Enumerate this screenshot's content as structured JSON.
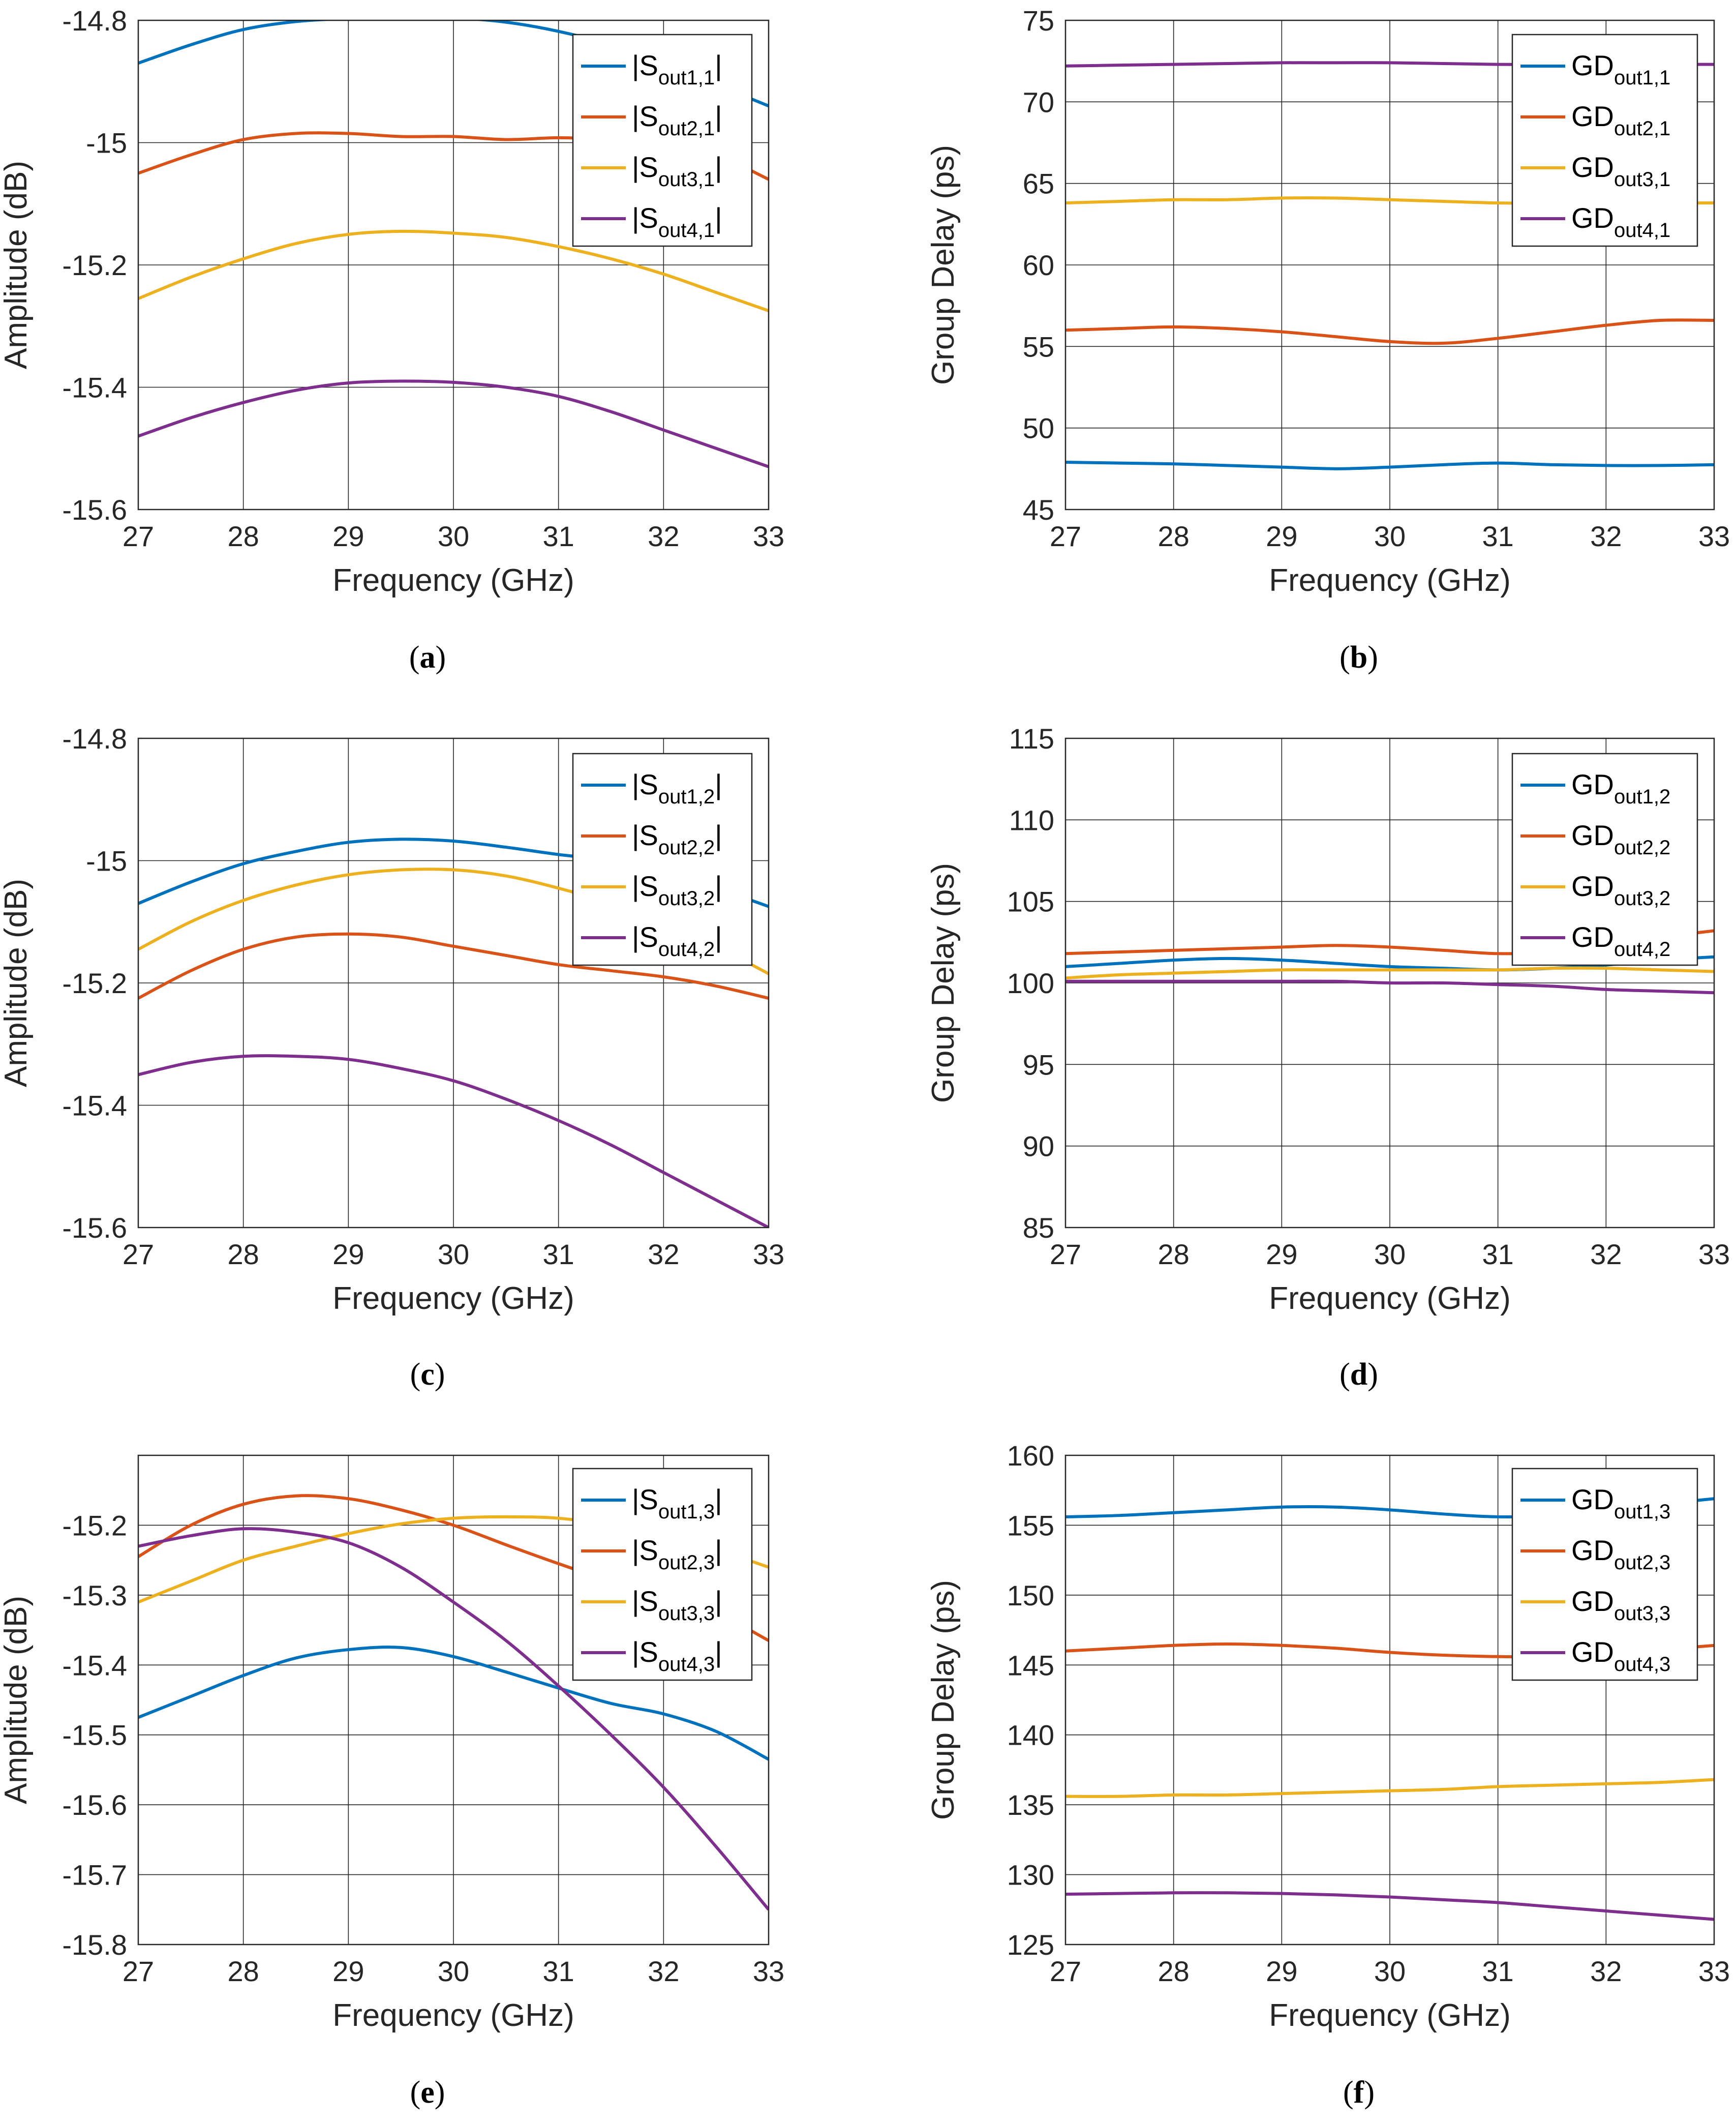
{
  "captions": [
    "a",
    "b",
    "c",
    "d",
    "e",
    "f"
  ],
  "chart_data": [
    {
      "type": "line",
      "xlabel": "Frequency (GHz)",
      "ylabel": "Amplitude (dB)",
      "xlim": [
        27,
        33
      ],
      "ylim": [
        -15.6,
        -14.8
      ],
      "xticks": [
        "27",
        "28",
        "29",
        "30",
        "31",
        "32",
        "33"
      ],
      "yticks": [
        "-15.6",
        "-15.4",
        "-15.2",
        "-15",
        "-14.8"
      ],
      "grid": true,
      "legend": "top-right",
      "x": [
        27,
        27.5,
        28,
        28.5,
        29,
        29.5,
        30,
        30.5,
        31,
        31.5,
        32,
        32.5,
        33
      ],
      "series": [
        {
          "name": "|Sout1,1|",
          "sub": "out1,1",
          "color": "#0072BD",
          "values": [
            -14.87,
            -14.84,
            -14.815,
            -14.802,
            -14.797,
            -14.795,
            -14.796,
            -14.803,
            -14.818,
            -14.84,
            -14.87,
            -14.905,
            -14.94
          ]
        },
        {
          "name": "|Sout2,1|",
          "sub": "out2,1",
          "color": "#D95319",
          "values": [
            -15.05,
            -15.02,
            -14.995,
            -14.985,
            -14.985,
            -14.99,
            -14.99,
            -14.995,
            -14.992,
            -14.995,
            -15.0,
            -15.02,
            -15.06
          ]
        },
        {
          "name": "|Sout3,1|",
          "sub": "out3,1",
          "color": "#EDB120",
          "values": [
            -15.255,
            -15.22,
            -15.19,
            -15.165,
            -15.15,
            -15.145,
            -15.148,
            -15.155,
            -15.17,
            -15.19,
            -15.215,
            -15.245,
            -15.275
          ]
        },
        {
          "name": "|Sout4,1|",
          "sub": "out4,1",
          "color": "#7E2F8E",
          "values": [
            -15.48,
            -15.45,
            -15.425,
            -15.405,
            -15.393,
            -15.39,
            -15.392,
            -15.4,
            -15.415,
            -15.44,
            -15.47,
            -15.5,
            -15.53
          ]
        }
      ]
    },
    {
      "type": "line",
      "xlabel": "Frequency (GHz)",
      "ylabel": "Group Delay (ps)",
      "xlim": [
        27,
        33
      ],
      "ylim": [
        45,
        75
      ],
      "xticks": [
        "27",
        "28",
        "29",
        "30",
        "31",
        "32",
        "33"
      ],
      "yticks": [
        "45",
        "50",
        "55",
        "60",
        "65",
        "70",
        "75"
      ],
      "grid": true,
      "legend": "top-right",
      "x": [
        27,
        27.5,
        28,
        28.5,
        29,
        29.5,
        30,
        30.5,
        31,
        31.5,
        32,
        32.5,
        33
      ],
      "series": [
        {
          "name": "GDout1,1",
          "sub": "out1,1",
          "color": "#0072BD",
          "values": [
            47.9,
            47.85,
            47.8,
            47.7,
            47.6,
            47.5,
            47.6,
            47.75,
            47.85,
            47.75,
            47.7,
            47.7,
            47.75
          ]
        },
        {
          "name": "GDout2,1",
          "sub": "out2,1",
          "color": "#D95319",
          "values": [
            56.0,
            56.1,
            56.2,
            56.1,
            55.9,
            55.6,
            55.3,
            55.2,
            55.5,
            55.9,
            56.3,
            56.6,
            56.6
          ]
        },
        {
          "name": "GDout3,1",
          "sub": "out3,1",
          "color": "#EDB120",
          "values": [
            63.8,
            63.9,
            64.0,
            64.0,
            64.1,
            64.1,
            64.0,
            63.9,
            63.8,
            63.8,
            63.8,
            63.8,
            63.8
          ]
        },
        {
          "name": "GDout4,1",
          "sub": "out4,1",
          "color": "#7E2F8E",
          "values": [
            72.2,
            72.25,
            72.3,
            72.35,
            72.4,
            72.4,
            72.4,
            72.35,
            72.3,
            72.3,
            72.3,
            72.3,
            72.3
          ]
        }
      ]
    },
    {
      "type": "line",
      "xlabel": "Frequency (GHz)",
      "ylabel": "Amplitude (dB)",
      "xlim": [
        27,
        33
      ],
      "ylim": [
        -15.6,
        -14.8
      ],
      "xticks": [
        "27",
        "28",
        "29",
        "30",
        "31",
        "32",
        "33"
      ],
      "yticks": [
        "-15.6",
        "-15.4",
        "-15.2",
        "-15",
        "-14.8"
      ],
      "grid": true,
      "legend": "top-right",
      "x": [
        27,
        27.5,
        28,
        28.5,
        29,
        29.5,
        30,
        30.5,
        31,
        31.5,
        32,
        32.5,
        33
      ],
      "series": [
        {
          "name": "|Sout1,2|",
          "sub": "out1,2",
          "color": "#0072BD",
          "values": [
            -15.07,
            -15.035,
            -15.005,
            -14.985,
            -14.97,
            -14.965,
            -14.968,
            -14.978,
            -14.99,
            -15.0,
            -15.02,
            -15.045,
            -15.075
          ]
        },
        {
          "name": "|Sout2,2|",
          "sub": "out2,2",
          "color": "#D95319",
          "values": [
            -15.225,
            -15.18,
            -15.145,
            -15.125,
            -15.12,
            -15.125,
            -15.14,
            -15.155,
            -15.17,
            -15.18,
            -15.19,
            -15.205,
            -15.225
          ]
        },
        {
          "name": "|Sout3,2|",
          "sub": "out3,2",
          "color": "#EDB120",
          "values": [
            -15.145,
            -15.1,
            -15.065,
            -15.04,
            -15.023,
            -15.015,
            -15.015,
            -15.025,
            -15.045,
            -15.07,
            -15.1,
            -15.14,
            -15.185
          ]
        },
        {
          "name": "|Sout4,2|",
          "sub": "out4,2",
          "color": "#7E2F8E",
          "values": [
            -15.35,
            -15.33,
            -15.32,
            -15.32,
            -15.325,
            -15.34,
            -15.36,
            -15.39,
            -15.425,
            -15.465,
            -15.51,
            -15.555,
            -15.6
          ]
        }
      ]
    },
    {
      "type": "line",
      "xlabel": "Frequency (GHz)",
      "ylabel": "Group Delay (ps)",
      "xlim": [
        27,
        33
      ],
      "ylim": [
        85,
        115
      ],
      "xticks": [
        "27",
        "28",
        "29",
        "30",
        "31",
        "32",
        "33"
      ],
      "yticks": [
        "85",
        "90",
        "95",
        "100",
        "105",
        "110",
        "115"
      ],
      "grid": true,
      "legend": "top-right",
      "x": [
        27,
        27.5,
        28,
        28.5,
        29,
        29.5,
        30,
        30.5,
        31,
        31.5,
        32,
        32.5,
        33
      ],
      "series": [
        {
          "name": "GDout1,2",
          "sub": "out1,2",
          "color": "#0072BD",
          "values": [
            101.0,
            101.2,
            101.4,
            101.5,
            101.4,
            101.2,
            101.0,
            100.9,
            100.8,
            100.9,
            101.1,
            101.4,
            101.6
          ]
        },
        {
          "name": "GDout2,2",
          "sub": "out2,2",
          "color": "#D95319",
          "values": [
            101.8,
            101.9,
            102.0,
            102.1,
            102.2,
            102.3,
            102.2,
            102.0,
            101.8,
            101.9,
            102.3,
            102.8,
            103.2
          ]
        },
        {
          "name": "GDout3,2",
          "sub": "out3,2",
          "color": "#EDB120",
          "values": [
            100.3,
            100.5,
            100.6,
            100.7,
            100.8,
            100.8,
            100.8,
            100.8,
            100.8,
            100.9,
            100.9,
            100.8,
            100.7
          ]
        },
        {
          "name": "GDout4,2",
          "sub": "out4,2",
          "color": "#7E2F8E",
          "values": [
            100.1,
            100.1,
            100.1,
            100.1,
            100.1,
            100.1,
            100.0,
            100.0,
            99.9,
            99.8,
            99.6,
            99.5,
            99.4
          ]
        }
      ]
    },
    {
      "type": "line",
      "xlabel": "Frequency (GHz)",
      "ylabel": "Amplitude (dB)",
      "xlim": [
        27,
        33
      ],
      "ylim": [
        -15.8,
        -15.1
      ],
      "xticks": [
        "27",
        "28",
        "29",
        "30",
        "31",
        "32",
        "33"
      ],
      "yticks": [
        "-15.8",
        "-15.7",
        "-15.6",
        "-15.5",
        "-15.4",
        "-15.3",
        "-15.2"
      ],
      "grid": true,
      "legend": "top-right",
      "x": [
        27,
        27.5,
        28,
        28.5,
        29,
        29.5,
        30,
        30.5,
        31,
        31.5,
        32,
        32.5,
        33
      ],
      "series": [
        {
          "name": "|Sout1,3|",
          "sub": "out1,3",
          "color": "#0072BD",
          "values": [
            -15.475,
            -15.445,
            -15.415,
            -15.39,
            -15.378,
            -15.375,
            -15.388,
            -15.41,
            -15.433,
            -15.455,
            -15.47,
            -15.495,
            -15.535
          ]
        },
        {
          "name": "|Sout2,3|",
          "sub": "out2,3",
          "color": "#D95319",
          "values": [
            -15.245,
            -15.2,
            -15.17,
            -15.158,
            -15.162,
            -15.178,
            -15.2,
            -15.228,
            -15.255,
            -15.28,
            -15.3,
            -15.325,
            -15.365
          ]
        },
        {
          "name": "|Sout3,3|",
          "sub": "out3,3",
          "color": "#EDB120",
          "values": [
            -15.31,
            -15.28,
            -15.25,
            -15.23,
            -15.212,
            -15.198,
            -15.19,
            -15.188,
            -15.19,
            -15.2,
            -15.215,
            -15.235,
            -15.26
          ]
        },
        {
          "name": "|Sout4,3|",
          "sub": "out4,3",
          "color": "#7E2F8E",
          "values": [
            -15.23,
            -15.215,
            -15.205,
            -15.21,
            -15.225,
            -15.26,
            -15.31,
            -15.365,
            -15.43,
            -15.5,
            -15.575,
            -15.66,
            -15.75
          ]
        }
      ]
    },
    {
      "type": "line",
      "xlabel": "Frequency (GHz)",
      "ylabel": "Group Delay (ps)",
      "xlim": [
        27,
        33
      ],
      "ylim": [
        125,
        160
      ],
      "xticks": [
        "27",
        "28",
        "29",
        "30",
        "31",
        "32",
        "33"
      ],
      "yticks": [
        "125",
        "130",
        "135",
        "140",
        "145",
        "150",
        "155",
        "160"
      ],
      "grid": true,
      "legend": "top-right",
      "x": [
        27,
        27.5,
        28,
        28.5,
        29,
        29.5,
        30,
        30.5,
        31,
        31.5,
        32,
        32.5,
        33
      ],
      "series": [
        {
          "name": "GDout1,3",
          "sub": "out1,3",
          "color": "#0072BD",
          "values": [
            155.6,
            155.7,
            155.9,
            156.1,
            156.3,
            156.3,
            156.1,
            155.8,
            155.6,
            155.7,
            156.0,
            156.5,
            156.9
          ]
        },
        {
          "name": "GDout2,3",
          "sub": "out2,3",
          "color": "#D95319",
          "values": [
            146.0,
            146.2,
            146.4,
            146.5,
            146.4,
            146.2,
            145.9,
            145.7,
            145.6,
            145.6,
            145.8,
            146.1,
            146.4
          ]
        },
        {
          "name": "GDout3,3",
          "sub": "out3,3",
          "color": "#EDB120",
          "values": [
            135.6,
            135.6,
            135.7,
            135.7,
            135.8,
            135.9,
            136.0,
            136.1,
            136.3,
            136.4,
            136.5,
            136.6,
            136.8
          ]
        },
        {
          "name": "GDout4,3",
          "sub": "out4,3",
          "color": "#7E2F8E",
          "values": [
            128.6,
            128.65,
            128.7,
            128.7,
            128.65,
            128.55,
            128.4,
            128.2,
            128.0,
            127.7,
            127.4,
            127.1,
            126.8
          ]
        }
      ]
    }
  ]
}
